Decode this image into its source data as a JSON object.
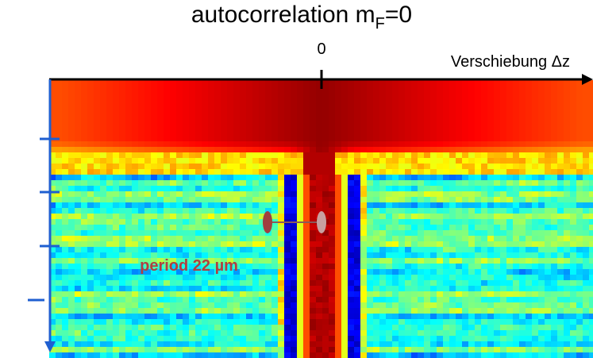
{
  "title": {
    "text": "autocorrelation m",
    "subscript": "F",
    "suffix": "=0"
  },
  "axis": {
    "origin_label": "0",
    "x_label": "Verschiebung Δz"
  },
  "annotation": "period 22 µm"
}
